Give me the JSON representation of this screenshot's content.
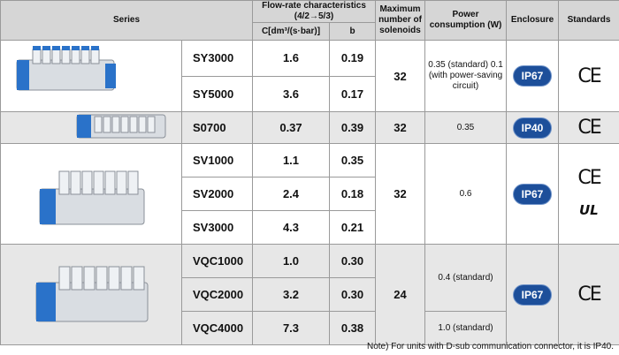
{
  "header": {
    "series": "Series",
    "flow_rate": "Flow-rate characteristics (4/2→5/3)",
    "c_unit": "C[dm³/(s·bar)]",
    "b": "b",
    "max_solenoids": "Maximum number of solenoids",
    "power": "Power consumption (W)",
    "enclosure": "Enclosure",
    "standards": "Standards"
  },
  "rows": [
    {
      "model": "SY3000",
      "c": "1.6",
      "b": "0.19"
    },
    {
      "model": "SY5000",
      "c": "3.6",
      "b": "0.17"
    },
    {
      "model": "S0700",
      "c": "0.37",
      "b": "0.39"
    },
    {
      "model": "SV1000",
      "c": "1.1",
      "b": "0.35"
    },
    {
      "model": "SV2000",
      "c": "2.4",
      "b": "0.18"
    },
    {
      "model": "SV3000",
      "c": "4.3",
      "b": "0.21"
    },
    {
      "model": "VQC1000",
      "c": "1.0",
      "b": "0.30"
    },
    {
      "model": "VQC2000",
      "c": "3.2",
      "b": "0.30"
    },
    {
      "model": "VQC4000",
      "c": "7.3",
      "b": "0.38"
    }
  ],
  "groups": [
    {
      "solenoids": "32",
      "power": "0.35 (standard) 0.1 (with power-saving circuit)",
      "enclosure": "IP67",
      "standard": "CE"
    },
    {
      "solenoids": "32",
      "power": "0.35",
      "enclosure": "IP40",
      "standard": "CE"
    },
    {
      "solenoids": "32",
      "power": "0.6",
      "enclosure": "IP67",
      "standard": "CE",
      "standard2": "UL"
    },
    {
      "solenoids": "24",
      "power": "0.4 (standard)",
      "power2": "1.0 (standard)",
      "enclosure": "IP67",
      "standard": "CE"
    }
  ],
  "note": "Note) For units with D-sub communication connector, it is IP40."
}
